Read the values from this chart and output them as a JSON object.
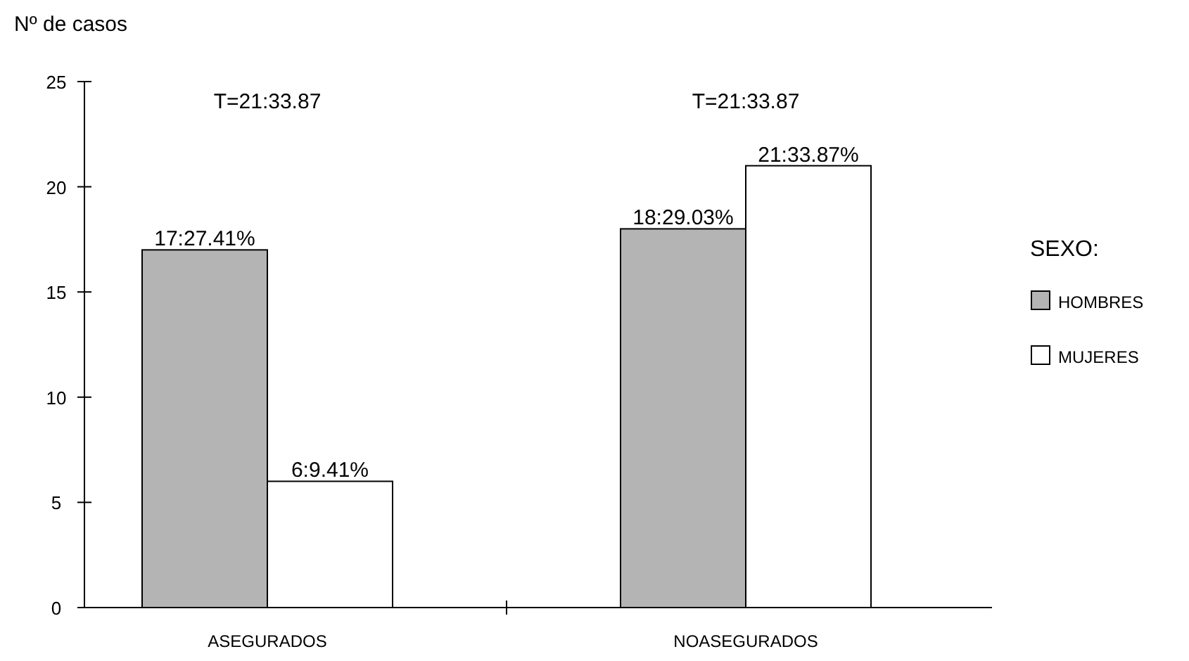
{
  "chart_data": {
    "type": "bar",
    "ylabel": "Nº de casos",
    "legend_title": "SEXO:",
    "legend": "right",
    "categories": [
      "ASEGURADOS",
      "NOASEGURADOS"
    ],
    "series": [
      {
        "name": "HOMBRES",
        "color": "#b4b4b4",
        "values": [
          17,
          18
        ],
        "value_labels": [
          "17:27.41%",
          "18:29.03%"
        ]
      },
      {
        "name": "MUJERES",
        "color": "#ffffff",
        "values": [
          6,
          21
        ],
        "value_labels": [
          "6:9.41%",
          "21:33.87%"
        ]
      }
    ],
    "annotations": [
      "T=21:33.87",
      "T=21:33.87"
    ],
    "ylim": [
      0,
      25
    ],
    "yticks": [
      0,
      5,
      10,
      15,
      20,
      25
    ],
    "grid": false
  }
}
